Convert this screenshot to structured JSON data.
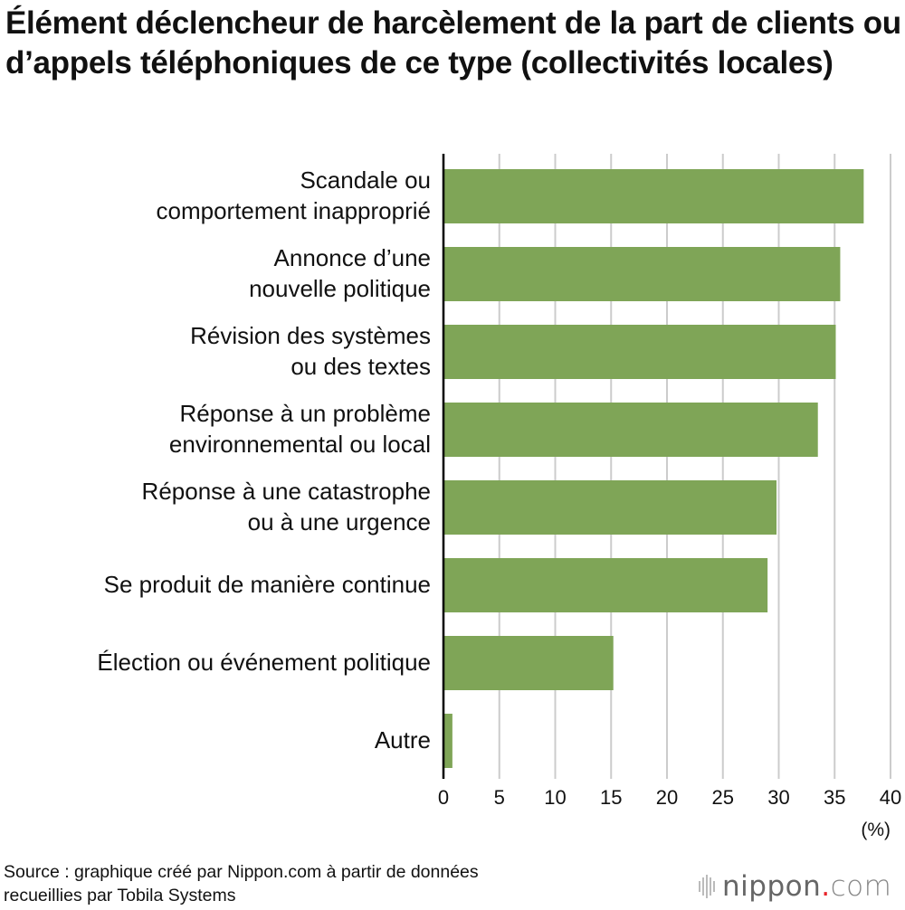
{
  "chart_data": {
    "type": "bar",
    "orientation": "horizontal",
    "title": "Élément déclencheur de harcèlement de la part de clients ou d’appels téléphoniques de ce type (collectivités locales)",
    "categories": [
      [
        "Scandale ou",
        "comportement inapproprié"
      ],
      [
        "Annonce d’une",
        "nouvelle politique"
      ],
      [
        "Révision des systèmes",
        "ou des textes"
      ],
      [
        "Réponse à un problème",
        "environnemental ou local"
      ],
      [
        "Réponse à une catastrophe",
        "ou à une urgence"
      ],
      [
        "Se produit de manière continue"
      ],
      [
        "Élection ou événement politique"
      ],
      [
        "Autre"
      ]
    ],
    "values": [
      37.6,
      35.5,
      35.1,
      33.5,
      29.8,
      29.0,
      15.2,
      0.8
    ],
    "xlabel": "(%)",
    "xlim": [
      0,
      40
    ],
    "xticks": [
      0,
      5,
      10,
      15,
      20,
      25,
      30,
      35,
      40
    ],
    "grid": "vertical",
    "bar_color": "#7fa557",
    "grid_color": "#cccccc"
  },
  "source": [
    "Source : graphique créé par Nippon.com à partir de données",
    "recueillies par Tobila Systems"
  ],
  "logo": {
    "text": "nippon",
    "dot": ".",
    "suffix": "com"
  }
}
